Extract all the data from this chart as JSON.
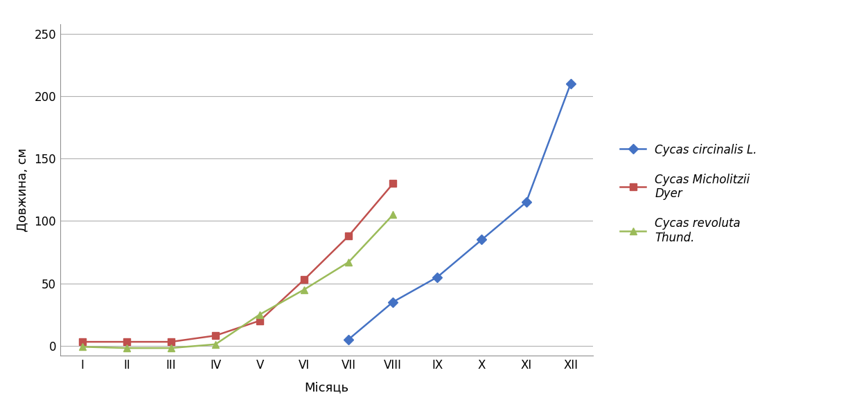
{
  "months": [
    "I",
    "II",
    "III",
    "IV",
    "V",
    "VI",
    "VII",
    "VIII",
    "IX",
    "X",
    "XI",
    "XII"
  ],
  "cycas_circinalis": [
    null,
    null,
    null,
    null,
    null,
    null,
    5,
    35,
    55,
    85,
    115,
    210
  ],
  "cycas_micholitzii": [
    3,
    3,
    3,
    8,
    20,
    53,
    88,
    130,
    null,
    null,
    null,
    null
  ],
  "cycas_revoluta": [
    -1,
    -2,
    -2,
    1,
    25,
    45,
    67,
    105,
    null,
    null,
    null,
    null
  ],
  "color_circinalis": "#4472C4",
  "color_micholitzii": "#C0504D",
  "color_revoluta": "#9BBB59",
  "ylabel": "Довжина, см",
  "xlabel": "Місяць",
  "legend_circinalis": "Cycas circinalis L.",
  "legend_micholitzii": "Cycas Micholitzii\nDyer",
  "legend_revoluta": "Cycas revoluta\nThund.",
  "ylim": [
    -8,
    258
  ],
  "yticks": [
    0,
    50,
    100,
    150,
    200,
    250
  ],
  "background_color": "#ffffff",
  "grid_color": "#b0b0b0",
  "marker_size": 7,
  "line_width": 1.8
}
